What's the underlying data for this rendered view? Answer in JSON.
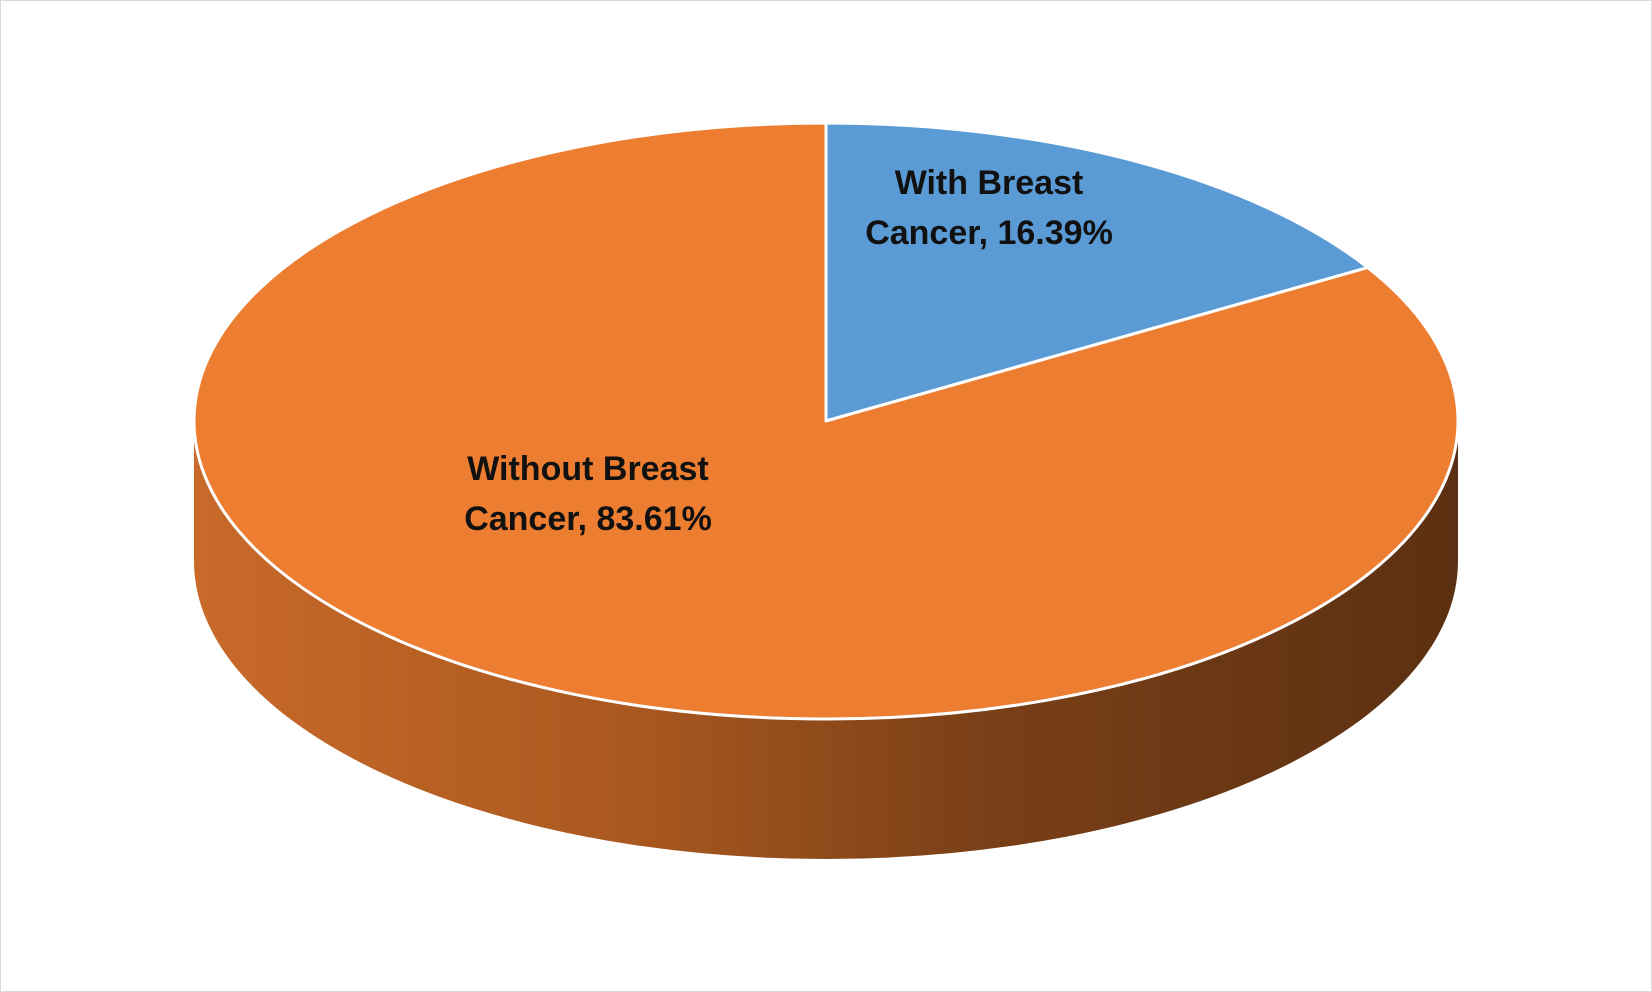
{
  "chart_data": {
    "type": "pie",
    "style": "3d",
    "categories": [
      "With Breast Cancer",
      "Without Breast Cancer"
    ],
    "values": [
      16.39,
      83.61
    ],
    "unit": "%",
    "colors": [
      "#5B9BD5",
      "#ED7D31"
    ],
    "data_labels": [
      [
        "With Breast",
        "Cancer, 16.39%"
      ],
      [
        "Without Breast",
        "Cancer, 83.61%"
      ]
    ],
    "title": "",
    "legend": "none"
  }
}
